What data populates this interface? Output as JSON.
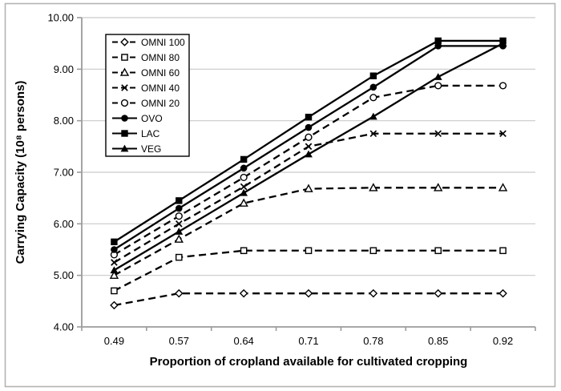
{
  "chart_data": {
    "type": "line",
    "title": "",
    "xlabel": "Proportion of cropland available for cultivated cropping",
    "ylabel": "Carrying Capacity (10⁸ persons)",
    "x": [
      0.49,
      0.57,
      0.64,
      0.71,
      0.78,
      0.85,
      0.92
    ],
    "x_tick_labels": [
      "0.49",
      "0.57",
      "0.64",
      "0.71",
      "0.78",
      "0.85",
      "0.92"
    ],
    "ylim": [
      4,
      10
    ],
    "y_ticks": [
      4,
      5,
      6,
      7,
      8,
      9,
      10
    ],
    "y_tick_labels": [
      "4.00",
      "5.00",
      "6.00",
      "7.00",
      "8.00",
      "9.00",
      "10.00"
    ],
    "grid": "horizontal-only",
    "legend_position": "top-left-inside",
    "series": [
      {
        "name": "OMNI 100",
        "line": "dashed",
        "marker": "diamond-open",
        "values": [
          4.42,
          4.65,
          4.65,
          4.65,
          4.65,
          4.65,
          4.65
        ]
      },
      {
        "name": "OMNI 80",
        "line": "dashed",
        "marker": "square-open",
        "values": [
          4.7,
          5.35,
          5.48,
          5.48,
          5.48,
          5.48,
          5.48
        ]
      },
      {
        "name": "OMNI 60",
        "line": "dashed",
        "marker": "triangle-open",
        "values": [
          5.0,
          5.7,
          6.4,
          6.68,
          6.7,
          6.7,
          6.7
        ]
      },
      {
        "name": "OMNI 40",
        "line": "dashed",
        "marker": "x",
        "values": [
          5.25,
          6.0,
          6.72,
          7.5,
          7.75,
          7.75,
          7.75
        ]
      },
      {
        "name": "OMNI 20",
        "line": "dashed",
        "marker": "circle-open",
        "values": [
          5.4,
          6.15,
          6.9,
          7.68,
          8.45,
          8.68,
          8.68
        ]
      },
      {
        "name": "OVO",
        "line": "solid",
        "marker": "circle-filled",
        "values": [
          5.5,
          6.3,
          7.08,
          7.87,
          8.65,
          9.45,
          9.45
        ]
      },
      {
        "name": "LAC",
        "line": "solid",
        "marker": "square-filled",
        "values": [
          5.65,
          6.45,
          7.25,
          8.07,
          8.87,
          9.55,
          9.55
        ]
      },
      {
        "name": "VEG",
        "line": "solid",
        "marker": "triangle-filled",
        "values": [
          5.1,
          5.85,
          6.6,
          7.35,
          8.08,
          8.85,
          9.5
        ]
      }
    ],
    "colors": {
      "series": "#000000",
      "gridline": "#c9c9c9",
      "axis": "#9b9b9b",
      "figure_border": "#b3b3b3",
      "text": "#000000",
      "background": "#ffffff"
    }
  }
}
